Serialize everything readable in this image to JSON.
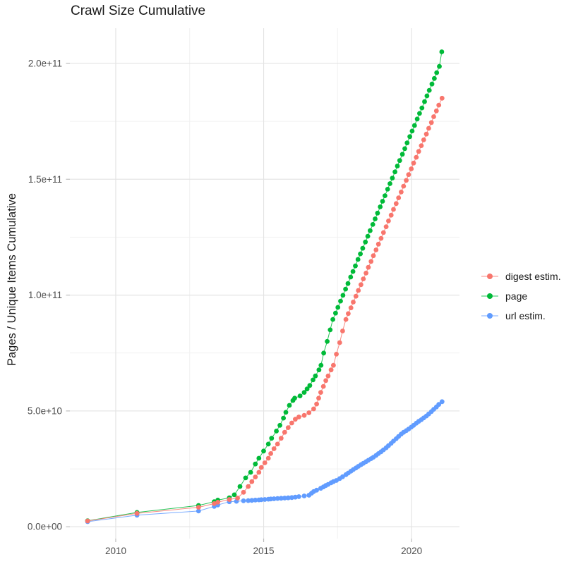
{
  "chart_data": {
    "type": "scatter",
    "title": "Crawl Size Cumulative",
    "value_scale": 10000000000.0,
    "x_axis": {
      "range": [
        2008.45,
        2021.62
      ],
      "ticks": [
        {
          "value": 2010,
          "label": "2010"
        },
        {
          "value": 2015,
          "label": "2015"
        },
        {
          "value": 2020,
          "label": "2020"
        }
      ],
      "minor": [
        2012.5,
        2017.5
      ]
    },
    "y_axis": {
      "title": "Pages / Unique Items Cumulative",
      "range": [
        -0.51,
        21.52
      ],
      "ticks": [
        {
          "value": 0,
          "label": "0.0e+00"
        },
        {
          "value": 5,
          "label": "5.0e+10"
        },
        {
          "value": 10,
          "label": "1.0e+11"
        },
        {
          "value": 15,
          "label": "1.5e+11"
        },
        {
          "value": 20,
          "label": "2.0e+11"
        }
      ],
      "minor": [
        2.5,
        7.5,
        12.5,
        17.5
      ]
    },
    "colors": {
      "digest": "#F8766D",
      "page": "#00BA38",
      "url": "#619CFF",
      "grid_major": "#E4E4E4",
      "grid_minor": "#F1F1F1",
      "tick_mark": "#BEBEBE",
      "tick_label": "#4d4d4d"
    },
    "legend": {
      "position": "right",
      "items": [
        {
          "label": "digest estim.",
          "color": "#F8766D"
        },
        {
          "label": "page",
          "color": "#00BA38"
        },
        {
          "label": "url estim.",
          "color": "#619CFF"
        }
      ]
    },
    "series": [
      {
        "name": "page",
        "color": "#00BA38",
        "points": [
          [
            2009.05,
            0.26
          ],
          [
            2010.72,
            0.62
          ],
          [
            2012.8,
            0.92
          ],
          [
            2013.33,
            1.08
          ],
          [
            2013.45,
            1.15
          ],
          [
            2013.84,
            1.25
          ],
          [
            2014.01,
            1.38
          ],
          [
            2014.2,
            1.74
          ],
          [
            2014.39,
            2.11
          ],
          [
            2014.56,
            2.35
          ],
          [
            2014.72,
            2.71
          ],
          [
            2014.84,
            2.96
          ],
          [
            2015.0,
            3.27
          ],
          [
            2015.16,
            3.57
          ],
          [
            2015.27,
            3.82
          ],
          [
            2015.43,
            4.13
          ],
          [
            2015.55,
            4.38
          ],
          [
            2015.67,
            4.69
          ],
          [
            2015.75,
            4.94
          ],
          [
            2015.87,
            5.24
          ],
          [
            2015.99,
            5.45
          ],
          [
            2016.05,
            5.55
          ],
          [
            2016.23,
            5.65
          ],
          [
            2016.37,
            5.8
          ],
          [
            2016.47,
            5.95
          ],
          [
            2016.56,
            6.1
          ],
          [
            2016.67,
            6.34
          ],
          [
            2016.75,
            6.51
          ],
          [
            2016.87,
            6.77
          ],
          [
            2016.94,
            6.97
          ],
          [
            2017.03,
            7.5
          ],
          [
            2017.15,
            8.0
          ],
          [
            2017.25,
            8.5
          ],
          [
            2017.34,
            8.95
          ],
          [
            2017.43,
            9.22
          ],
          [
            2017.51,
            9.47
          ],
          [
            2017.6,
            9.74
          ],
          [
            2017.68,
            9.99
          ],
          [
            2017.77,
            10.26
          ],
          [
            2017.85,
            10.5
          ],
          [
            2017.94,
            10.78
          ],
          [
            2018.02,
            11.02
          ],
          [
            2018.1,
            11.26
          ],
          [
            2018.19,
            11.54
          ],
          [
            2018.27,
            11.78
          ],
          [
            2018.35,
            12.02
          ],
          [
            2018.44,
            12.29
          ],
          [
            2018.52,
            12.54
          ],
          [
            2018.6,
            12.78
          ],
          [
            2018.69,
            13.05
          ],
          [
            2018.77,
            13.29
          ],
          [
            2018.85,
            13.54
          ],
          [
            2018.94,
            13.81
          ],
          [
            2019.02,
            14.05
          ],
          [
            2019.1,
            14.29
          ],
          [
            2019.19,
            14.57
          ],
          [
            2019.27,
            14.81
          ],
          [
            2019.35,
            15.05
          ],
          [
            2019.44,
            15.32
          ],
          [
            2019.52,
            15.57
          ],
          [
            2019.6,
            15.81
          ],
          [
            2019.69,
            16.08
          ],
          [
            2019.77,
            16.32
          ],
          [
            2019.85,
            16.57
          ],
          [
            2019.94,
            16.84
          ],
          [
            2020.02,
            17.08
          ],
          [
            2020.1,
            17.32
          ],
          [
            2020.19,
            17.6
          ],
          [
            2020.27,
            17.84
          ],
          [
            2020.35,
            18.08
          ],
          [
            2020.44,
            18.35
          ],
          [
            2020.52,
            18.6
          ],
          [
            2020.6,
            18.84
          ],
          [
            2020.69,
            19.11
          ],
          [
            2020.77,
            19.35
          ],
          [
            2020.85,
            19.6
          ],
          [
            2020.94,
            19.87
          ],
          [
            2021.02,
            20.5
          ]
        ]
      },
      {
        "name": "url estim.",
        "color": "#619CFF",
        "points": [
          [
            2009.05,
            0.22
          ],
          [
            2010.72,
            0.5
          ],
          [
            2012.8,
            0.68
          ],
          [
            2013.33,
            0.88
          ],
          [
            2013.45,
            0.94
          ],
          [
            2013.84,
            1.08
          ],
          [
            2014.08,
            1.1
          ],
          [
            2014.32,
            1.12
          ],
          [
            2014.48,
            1.13
          ],
          [
            2014.6,
            1.14
          ],
          [
            2014.72,
            1.15
          ],
          [
            2014.84,
            1.16
          ],
          [
            2014.92,
            1.17
          ],
          [
            2015.04,
            1.18
          ],
          [
            2015.16,
            1.19
          ],
          [
            2015.24,
            1.2
          ],
          [
            2015.35,
            1.21
          ],
          [
            2015.47,
            1.22
          ],
          [
            2015.59,
            1.23
          ],
          [
            2015.71,
            1.24
          ],
          [
            2015.83,
            1.25
          ],
          [
            2015.95,
            1.26
          ],
          [
            2016.07,
            1.28
          ],
          [
            2016.19,
            1.3
          ],
          [
            2016.37,
            1.33
          ],
          [
            2016.53,
            1.36
          ],
          [
            2016.62,
            1.45
          ],
          [
            2016.69,
            1.52
          ],
          [
            2016.79,
            1.58
          ],
          [
            2016.93,
            1.66
          ],
          [
            2017.02,
            1.72
          ],
          [
            2017.1,
            1.78
          ],
          [
            2017.18,
            1.83
          ],
          [
            2017.28,
            1.9
          ],
          [
            2017.36,
            1.95
          ],
          [
            2017.46,
            2.0
          ],
          [
            2017.57,
            2.08
          ],
          [
            2017.67,
            2.16
          ],
          [
            2017.78,
            2.25
          ],
          [
            2017.86,
            2.32
          ],
          [
            2017.95,
            2.4
          ],
          [
            2018.03,
            2.47
          ],
          [
            2018.12,
            2.54
          ],
          [
            2018.2,
            2.61
          ],
          [
            2018.29,
            2.68
          ],
          [
            2018.37,
            2.74
          ],
          [
            2018.46,
            2.81
          ],
          [
            2018.54,
            2.87
          ],
          [
            2018.63,
            2.94
          ],
          [
            2018.71,
            3.0
          ],
          [
            2018.8,
            3.08
          ],
          [
            2018.88,
            3.16
          ],
          [
            2018.97,
            3.24
          ],
          [
            2019.05,
            3.32
          ],
          [
            2019.14,
            3.41
          ],
          [
            2019.22,
            3.5
          ],
          [
            2019.31,
            3.6
          ],
          [
            2019.39,
            3.7
          ],
          [
            2019.48,
            3.8
          ],
          [
            2019.56,
            3.9
          ],
          [
            2019.65,
            4.0
          ],
          [
            2019.73,
            4.08
          ],
          [
            2019.82,
            4.15
          ],
          [
            2019.9,
            4.22
          ],
          [
            2019.99,
            4.3
          ],
          [
            2020.07,
            4.38
          ],
          [
            2020.16,
            4.47
          ],
          [
            2020.24,
            4.55
          ],
          [
            2020.33,
            4.62
          ],
          [
            2020.41,
            4.7
          ],
          [
            2020.5,
            4.78
          ],
          [
            2020.58,
            4.87
          ],
          [
            2020.67,
            4.97
          ],
          [
            2020.75,
            5.07
          ],
          [
            2020.84,
            5.17
          ],
          [
            2020.92,
            5.28
          ],
          [
            2021.03,
            5.4
          ]
        ]
      },
      {
        "name": "digest estim.",
        "color": "#F8766D",
        "points": [
          [
            2009.05,
            0.25
          ],
          [
            2010.72,
            0.58
          ],
          [
            2012.8,
            0.84
          ],
          [
            2013.33,
            1.0
          ],
          [
            2013.45,
            1.06
          ],
          [
            2013.84,
            1.18
          ],
          [
            2014.12,
            1.24
          ],
          [
            2014.32,
            1.49
          ],
          [
            2014.48,
            1.74
          ],
          [
            2014.6,
            1.95
          ],
          [
            2014.72,
            2.15
          ],
          [
            2014.84,
            2.35
          ],
          [
            2014.92,
            2.56
          ],
          [
            2015.04,
            2.76
          ],
          [
            2015.16,
            2.96
          ],
          [
            2015.24,
            3.16
          ],
          [
            2015.35,
            3.37
          ],
          [
            2015.47,
            3.57
          ],
          [
            2015.59,
            3.82
          ],
          [
            2015.71,
            4.08
          ],
          [
            2015.83,
            4.28
          ],
          [
            2015.95,
            4.48
          ],
          [
            2016.07,
            4.64
          ],
          [
            2016.19,
            4.74
          ],
          [
            2016.37,
            4.81
          ],
          [
            2016.53,
            4.92
          ],
          [
            2016.69,
            5.09
          ],
          [
            2016.79,
            5.3
          ],
          [
            2016.86,
            5.55
          ],
          [
            2016.93,
            5.8
          ],
          [
            2017.02,
            6.06
          ],
          [
            2017.1,
            6.31
          ],
          [
            2017.18,
            6.51
          ],
          [
            2017.28,
            6.77
          ],
          [
            2017.36,
            6.97
          ],
          [
            2017.46,
            7.45
          ],
          [
            2017.57,
            7.95
          ],
          [
            2017.67,
            8.45
          ],
          [
            2017.78,
            8.95
          ],
          [
            2017.86,
            9.2
          ],
          [
            2017.95,
            9.45
          ],
          [
            2018.03,
            9.7
          ],
          [
            2018.12,
            9.95
          ],
          [
            2018.2,
            10.2
          ],
          [
            2018.29,
            10.45
          ],
          [
            2018.37,
            10.7
          ],
          [
            2018.46,
            10.95
          ],
          [
            2018.54,
            11.2
          ],
          [
            2018.63,
            11.45
          ],
          [
            2018.71,
            11.7
          ],
          [
            2018.8,
            11.95
          ],
          [
            2018.88,
            12.2
          ],
          [
            2018.97,
            12.45
          ],
          [
            2019.05,
            12.7
          ],
          [
            2019.14,
            12.95
          ],
          [
            2019.22,
            13.2
          ],
          [
            2019.31,
            13.45
          ],
          [
            2019.39,
            13.7
          ],
          [
            2019.48,
            13.95
          ],
          [
            2019.56,
            14.2
          ],
          [
            2019.65,
            14.45
          ],
          [
            2019.73,
            14.7
          ],
          [
            2019.82,
            14.95
          ],
          [
            2019.9,
            15.2
          ],
          [
            2019.99,
            15.45
          ],
          [
            2020.07,
            15.7
          ],
          [
            2020.16,
            15.95
          ],
          [
            2020.24,
            16.2
          ],
          [
            2020.33,
            16.45
          ],
          [
            2020.41,
            16.7
          ],
          [
            2020.5,
            16.95
          ],
          [
            2020.58,
            17.2
          ],
          [
            2020.67,
            17.45
          ],
          [
            2020.75,
            17.7
          ],
          [
            2020.84,
            17.95
          ],
          [
            2020.92,
            18.2
          ],
          [
            2021.03,
            18.5
          ]
        ]
      }
    ]
  }
}
